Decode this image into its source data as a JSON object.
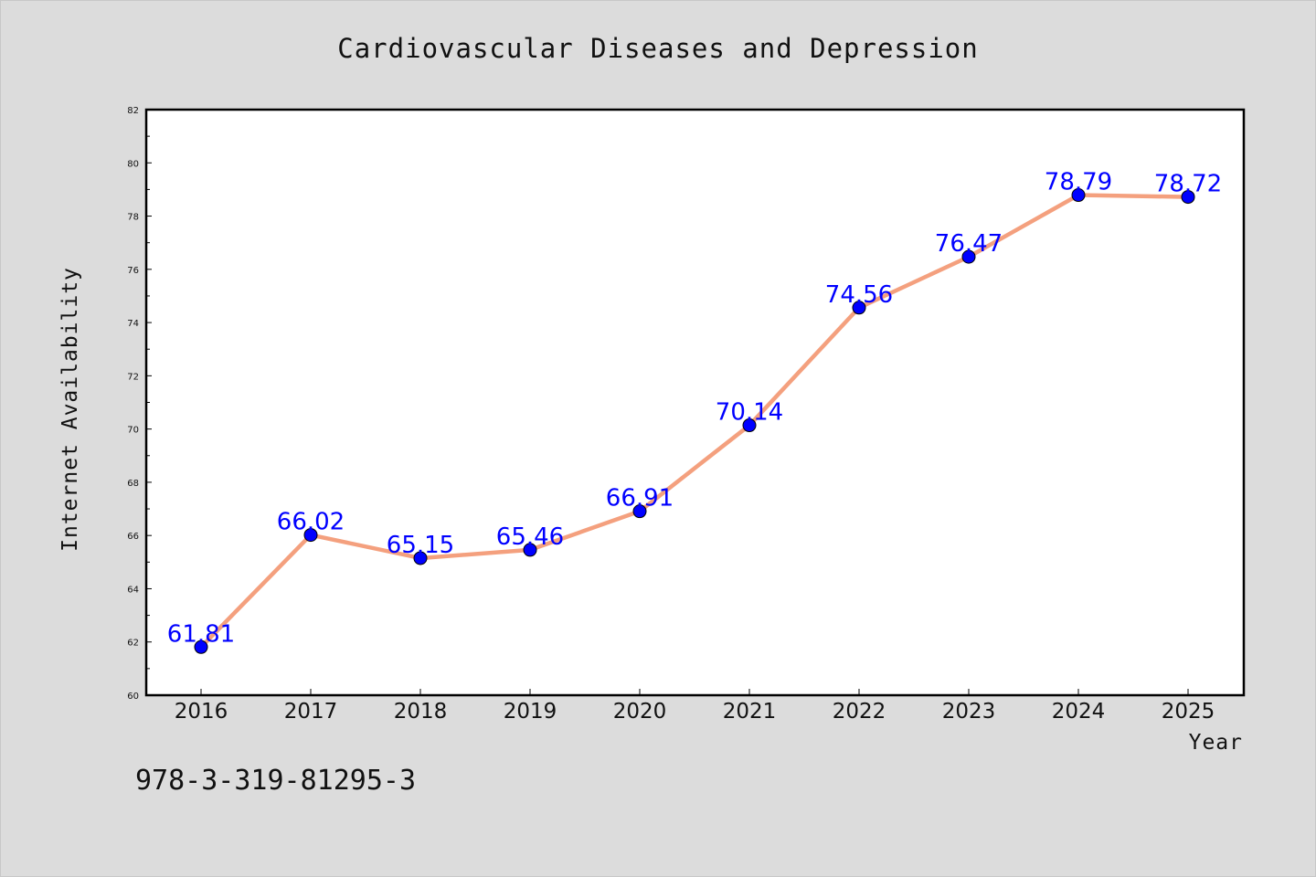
{
  "chart_data": {
    "type": "line",
    "title": "Cardiovascular Diseases and Depression",
    "xlabel": "Year",
    "ylabel": "Internet Availability",
    "x": [
      "2016",
      "2017",
      "2018",
      "2019",
      "2020",
      "2021",
      "2022",
      "2023",
      "2024",
      "2025"
    ],
    "series": [
      {
        "values": [
          61.81,
          66.02,
          65.15,
          65.46,
          66.91,
          70.14,
          74.56,
          76.47,
          78.79,
          78.72
        ]
      }
    ],
    "data_labels": [
      "61.81",
      "66.02",
      "65.15",
      "65.46",
      "66.91",
      "70.14",
      "74.56",
      "76.47",
      "78.79",
      "78.72"
    ],
    "ylim": [
      60,
      82
    ],
    "yticks": [
      "60",
      "62",
      "64",
      "66",
      "68",
      "70",
      "72",
      "74",
      "76",
      "78",
      "80",
      "82"
    ],
    "grid": false,
    "legend": "none",
    "line_color": "#f4a07e",
    "marker_color": "#0000ff"
  },
  "footer": {
    "isbn": "978-3-319-81295-3"
  },
  "colors": {
    "background": "#dcdcdc",
    "plot_background": "#ffffff"
  }
}
